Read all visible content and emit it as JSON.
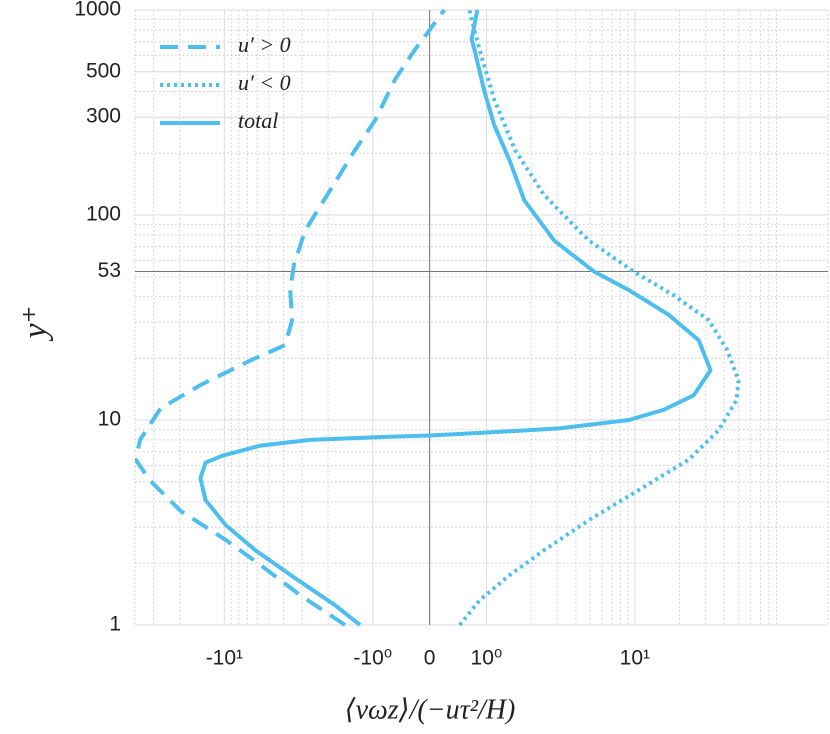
{
  "chart_data": {
    "type": "line",
    "x_label": "⟨vωz⟩/(−uτ²/H)",
    "y_label": "y⁺",
    "x_scale": "symlog",
    "y_scale": "log",
    "xlim": [
      -40,
      200
    ],
    "ylim": [
      1,
      1000
    ],
    "xticks": [
      {
        "value": -10,
        "label": "-10¹"
      },
      {
        "value": -1,
        "label": "-10⁰"
      },
      0,
      {
        "value": 1,
        "label": "10⁰"
      },
      {
        "value": 10,
        "label": "10¹"
      }
    ],
    "yticks": [
      1,
      10,
      53,
      100,
      300,
      500,
      1000
    ],
    "reference_lines": {
      "x": 0,
      "y": 53
    },
    "grid": true,
    "legend": "upper left",
    "series": [
      {
        "name": "u′ > 0",
        "color": "#4dbeee",
        "dash": "dashed",
        "x": [
          -1.54,
          -3.1,
          -5.7,
          -9.8,
          -19.7,
          -32,
          -39.5,
          -37,
          -26.9,
          -14.5,
          -6.6,
          -3.9,
          -3.5,
          -3.6,
          -3.4,
          -2.86,
          -1.94,
          -1.32,
          -0.96,
          -0.61,
          -0.26,
          0,
          0.18,
          0.26
        ],
        "y": [
          1,
          1.4,
          1.96,
          2.6,
          3.6,
          5.1,
          6.4,
          8,
          11.4,
          14.8,
          19.6,
          23.2,
          30.7,
          43,
          57,
          84,
          132,
          207,
          290,
          458,
          640,
          800,
          940,
          1000
        ]
      },
      {
        "name": "u′ < 0",
        "color": "#4dbeee",
        "dash": "dotted",
        "x": [
          0.53,
          0.88,
          1.43,
          2.45,
          4.9,
          10.6,
          23,
          36.6,
          48.4,
          50,
          41.8,
          31.4,
          18.3,
          9.8,
          4.9,
          2.45,
          1.56,
          1.13,
          0.88,
          0.74,
          0.7
        ],
        "y": [
          1,
          1.32,
          1.75,
          2.32,
          3.25,
          4.55,
          6.4,
          8.9,
          12.5,
          15.6,
          22,
          30.7,
          40.6,
          53,
          75,
          125,
          207,
          365,
          640,
          900,
          1000
        ]
      },
      {
        "name": "total",
        "color": "#4dbeee",
        "dash": "solid",
        "x": [
          -1.22,
          -1.8,
          -3.33,
          -6.2,
          -9.8,
          -13.4,
          -14.5,
          -13.4,
          -10.3,
          -5.7,
          -2.65,
          -0.88,
          0,
          1.05,
          3.1,
          9.1,
          15.6,
          24.9,
          32.3,
          26.9,
          16.9,
          9.1,
          5.3,
          2.86,
          1.8,
          1.43,
          1.13,
          0.96,
          0.79,
          0.74,
          0.84
        ],
        "y": [
          1,
          1.25,
          1.69,
          2.32,
          3.07,
          4.07,
          5.2,
          6.2,
          6.7,
          7.5,
          8,
          8.25,
          8.4,
          8.7,
          9.1,
          10,
          11.2,
          13.2,
          17.5,
          24.5,
          32.6,
          43,
          53,
          75,
          118,
          185,
          274,
          405,
          640,
          718,
          1000
        ]
      }
    ]
  }
}
